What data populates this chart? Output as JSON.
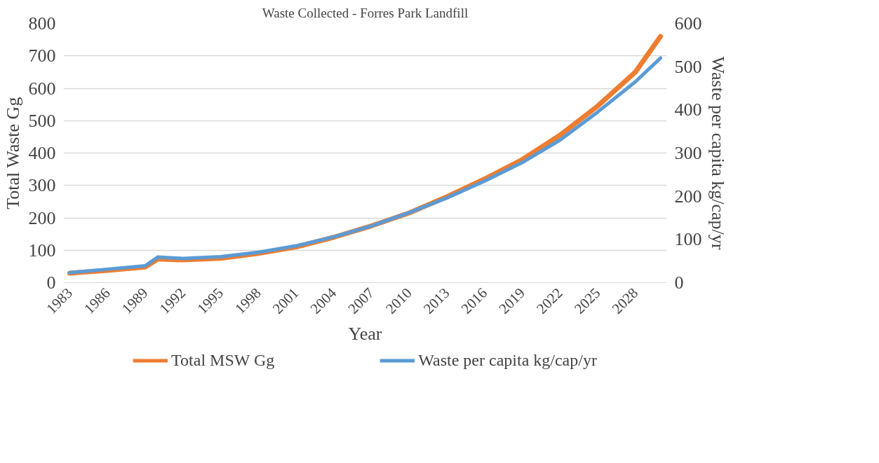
{
  "chart_data": {
    "type": "line",
    "title": "Waste Collected - Forres Park Landfill",
    "xlabel": "Year",
    "ylabel": "Total Waste Gg",
    "y2label": "Waste per capita kg/cap/yr",
    "xlim": [
      1982.5,
      2030.5
    ],
    "xticks": [
      1983,
      1986,
      1989,
      1992,
      1995,
      1998,
      2001,
      2004,
      2007,
      2010,
      2013,
      2016,
      2019,
      2022,
      2025,
      2028
    ],
    "ylim": [
      0,
      800
    ],
    "yticks": [
      0,
      100,
      200,
      300,
      400,
      500,
      600,
      700,
      800
    ],
    "y2lim": [
      0,
      600
    ],
    "y2ticks": [
      0,
      100,
      200,
      300,
      400,
      500,
      600
    ],
    "grid": "y",
    "legend": "bottom",
    "marker": "none",
    "line_style": "solid",
    "series": [
      {
        "name": "Total MSW Gg",
        "color": "#ed7d31",
        "x": [
          1983,
          1986,
          1989,
          1990,
          1992,
          1995,
          1998,
          2001,
          2004,
          2007,
          2010,
          2013,
          2016,
          2019,
          2022,
          2025,
          2028,
          2030
        ],
        "values": [
          29,
          38,
          48,
          73,
          70,
          75,
          90,
          110,
          140,
          175,
          215,
          265,
          320,
          380,
          455,
          545,
          650,
          760
        ]
      },
      {
        "name": "Waste per capita kg/cap/yr",
        "color": "#5b9bd5",
        "axis": "y2",
        "x": [
          1983,
          1986,
          1989,
          1990,
          1992,
          1995,
          1998,
          2001,
          2004,
          2007,
          2010,
          2013,
          2016,
          2019,
          2022,
          2025,
          2028,
          2030
        ],
        "values": [
          23,
          31,
          39,
          59,
          56,
          60,
          70,
          85,
          106,
          131,
          162,
          196,
          235,
          278,
          330,
          395,
          465,
          520
        ]
      }
    ]
  }
}
